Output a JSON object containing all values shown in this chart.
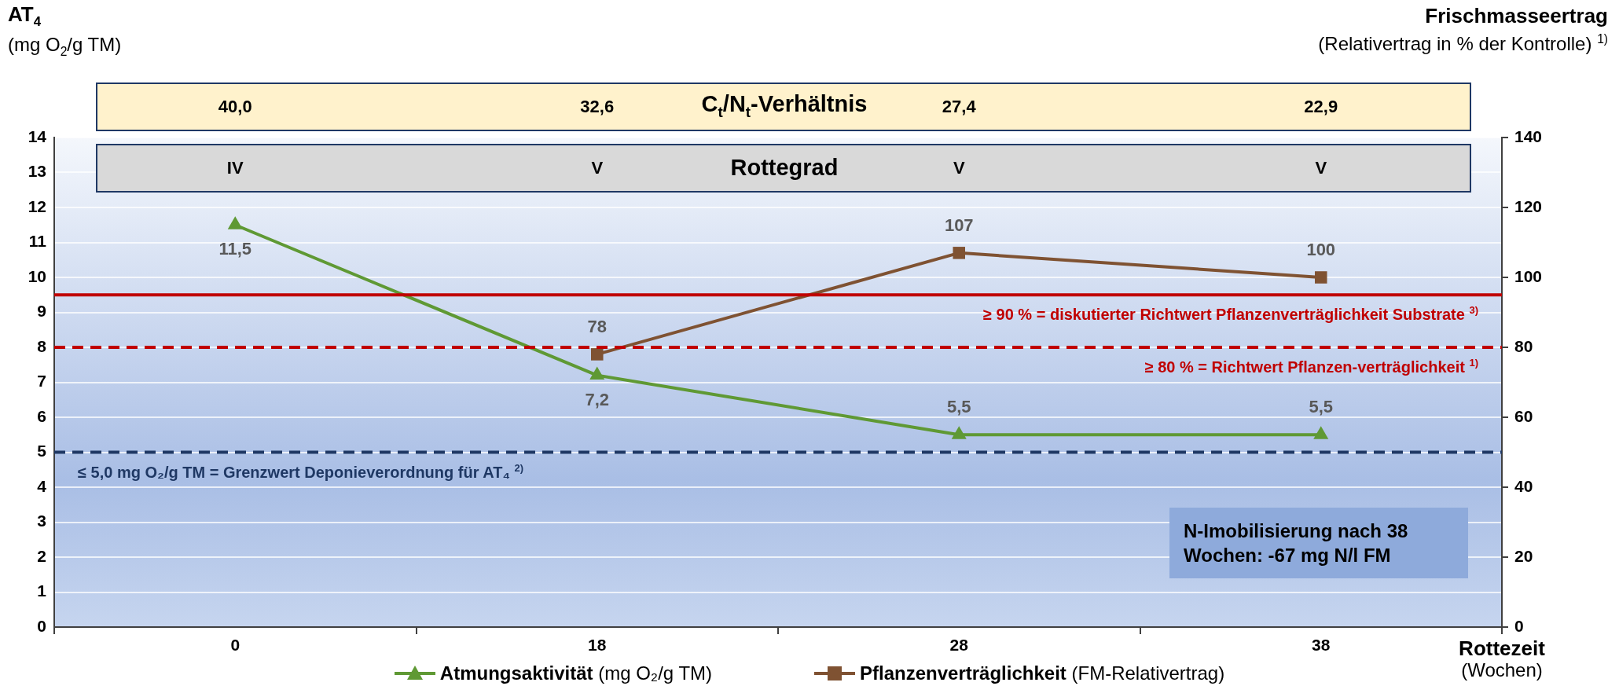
{
  "chart_data": {
    "type": "line",
    "ylabel": "AT$_{4}$\n(mg O$_{2}$/g TM)",
    "y2label": "Frischmasseertrag\n(Relativertrag in % der Kontrolle) $^{1)}$",
    "xlabel": "Rottezeit\n(Wochen)",
    "categories": [
      "0",
      "18",
      "28",
      "38"
    ],
    "series": [
      {
        "name": "Atmungsaktivität (mg O₂/g TM)",
        "color": "#5f9934",
        "marker": "triangle",
        "values": [
          11.5,
          7.2,
          5.5,
          5.5
        ],
        "value_labels": [
          "11,5",
          "7,2",
          "5,5",
          "5,5"
        ]
      },
      {
        "name": "Pflanzenverträglichkeit (FM-Relativertrag)",
        "color": "#7f5232",
        "marker": "square",
        "axis": "y2",
        "values": [
          null,
          78,
          107,
          100
        ],
        "value_labels": [
          null,
          "78",
          "107",
          "100"
        ]
      }
    ],
    "ylim": [
      0,
      14
    ],
    "yticks": [
      0,
      1,
      2,
      3,
      4,
      5,
      6,
      7,
      8,
      9,
      10,
      11,
      12,
      13,
      14
    ],
    "y2lim": [
      0,
      140
    ],
    "y2ticks": [
      0,
      20,
      40,
      60,
      80,
      100,
      120,
      140
    ],
    "ref_lines": [
      {
        "axis": "y2",
        "value": 95,
        "label": "≥ 90 % = diskutierter Richtwert Pflanzenverträglichkeit Substrate $^{3)}$",
        "color": "#c00000",
        "line_style": "solid"
      },
      {
        "axis": "y2",
        "value": 80,
        "label": "≥ 80 % = Richtwert Pflanzen-verträglichkeit $^{1)}$",
        "color": "#c00000",
        "line_style": "dashed"
      },
      {
        "axis": "y",
        "value": 5,
        "label": "≤ 5,0 mg O₂/g TM = Grenzwert Deponieverordnung für AT₄ $^{2)}$",
        "color": "#1f3864",
        "line_style": "dashed"
      }
    ],
    "annotations": [
      "40,0",
      "32,6",
      "27,4",
      "22,9",
      "C$_{t}$/N$_{t}$-Verhältnis",
      "IV",
      "V",
      "V",
      "V",
      "Rottegrad",
      "N-Imobilisierung nach 38 Wochen: -67 mg N/l FM"
    ],
    "grid": "y",
    "legend": "bottom"
  }
}
